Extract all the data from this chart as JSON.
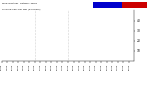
{
  "bg_color": "#ffffff",
  "dot_color_temp": "#dd0000",
  "dot_color_wind": "#cc0000",
  "legend_temp_color": "#cc0000",
  "legend_wind_color": "#0000cc",
  "title_text": "Milw Weather  Outdoor Temp vs Wind Chill per Min (24 Hours)",
  "ylim": [
    0,
    50
  ],
  "ytick_values": [
    10,
    20,
    30,
    40
  ],
  "vlines": [
    6,
    12
  ],
  "vline_color": "#aaaaaa",
  "vline_style": ":",
  "n_points": 1440,
  "seed": 42,
  "sample_every": 10
}
